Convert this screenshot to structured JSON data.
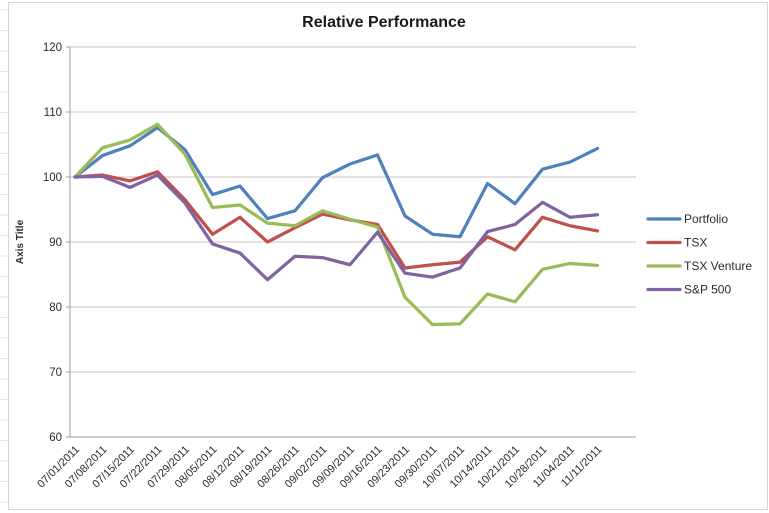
{
  "chart_data": {
    "type": "line",
    "title": "Relative Performance",
    "xlabel": "",
    "ylabel": "Axis Title",
    "ylim": [
      60,
      120
    ],
    "ytick_step": 10,
    "grid": "horizontal",
    "legend_position": "right",
    "categories": [
      "07/01/2011",
      "07/08/2011",
      "07/15/2011",
      "07/22/2011",
      "07/29/2011",
      "08/05/2011",
      "08/12/2011",
      "08/19/2011",
      "08/26/2011",
      "09/02/2011",
      "09/09/2011",
      "09/16/2011",
      "09/23/2011",
      "09/30/2011",
      "10/07/2011",
      "10/14/2011",
      "10/21/2011",
      "10/28/2011",
      "11/04/2011",
      "11/11/2011"
    ],
    "series": [
      {
        "name": "Portfolio",
        "color": "#4F81BD",
        "values": [
          100,
          103.3,
          104.8,
          107.6,
          104.2,
          97.3,
          98.6,
          93.6,
          94.8,
          99.9,
          102.0,
          103.4,
          94.0,
          91.2,
          90.8,
          99.0,
          95.9,
          101.2,
          102.3,
          104.4
        ]
      },
      {
        "name": "TSX",
        "color": "#C0504D",
        "values": [
          100,
          100.3,
          99.4,
          100.8,
          96.5,
          91.2,
          93.8,
          90.0,
          92.2,
          94.3,
          93.4,
          92.7,
          86.0,
          86.5,
          86.9,
          90.8,
          88.8,
          93.8,
          92.5,
          91.7
        ]
      },
      {
        "name": "TSX Venture",
        "color": "#9BBB59",
        "values": [
          100,
          104.5,
          105.7,
          108.1,
          103.5,
          95.3,
          95.7,
          92.9,
          92.5,
          94.8,
          93.5,
          92.3,
          81.5,
          77.3,
          77.4,
          82.0,
          80.8,
          85.8,
          86.7,
          86.4
        ]
      },
      {
        "name": "S&P 500",
        "color": "#8064A2",
        "values": [
          100,
          100.1,
          98.4,
          100.3,
          96.0,
          89.7,
          88.3,
          84.2,
          87.8,
          87.6,
          86.5,
          91.5,
          85.2,
          84.6,
          86.0,
          91.6,
          92.7,
          96.1,
          93.8,
          94.2
        ]
      }
    ],
    "colors": {
      "gridline": "#C6C6C6",
      "axis": "#9C9C9C",
      "chart_border": "#D6D6D6",
      "sheet_line": "#E4E4E4"
    }
  }
}
